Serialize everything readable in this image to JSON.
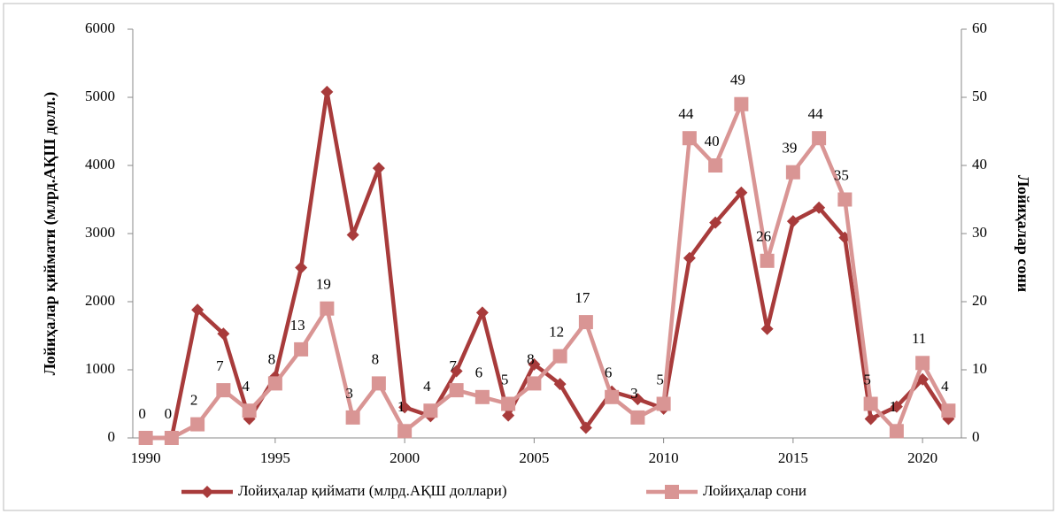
{
  "chart_data": {
    "type": "line",
    "y_label": "Лойиҳалар қиймати (млрд.АҚШ долл.)",
    "y2_label": "Лойиҳалар сони",
    "x": [
      1990,
      1991,
      1992,
      1993,
      1994,
      1995,
      1996,
      1997,
      1998,
      1999,
      2000,
      2001,
      2002,
      2003,
      2004,
      2005,
      2006,
      2007,
      2008,
      2009,
      2010,
      2011,
      2012,
      2013,
      2014,
      2015,
      2016,
      2017,
      2018,
      2019,
      2020,
      2021
    ],
    "series": [
      {
        "name": "Лойиҳалар қиймати (млрд.АҚШ доллари)",
        "color": "#a83b3b",
        "marker": "diamond",
        "values": [
          0,
          0,
          1880,
          1530,
          280,
          900,
          2500,
          5080,
          2980,
          3960,
          450,
          320,
          980,
          1840,
          330,
          1080,
          790,
          150,
          680,
          570,
          430,
          2640,
          3160,
          3600,
          1600,
          3180,
          3380,
          2940,
          280,
          460,
          860,
          280
        ]
      },
      {
        "name": "Лойиҳалар сони",
        "color": "#d99594",
        "marker": "square",
        "axis": "y2",
        "data_labels": true,
        "values": [
          0,
          0,
          2,
          7,
          4,
          8,
          13,
          19,
          3,
          8,
          1,
          4,
          7,
          6,
          5,
          8,
          12,
          17,
          6,
          3,
          5,
          44,
          40,
          49,
          26,
          39,
          44,
          35,
          5,
          1,
          11,
          4
        ]
      }
    ],
    "xlim": [
      1989.5,
      2021.5
    ],
    "xticks": [
      1990,
      1995,
      2000,
      2005,
      2010,
      2015,
      2020
    ],
    "ylim": [
      0,
      6000
    ],
    "yticks": [
      0,
      1000,
      2000,
      3000,
      4000,
      5000,
      6000
    ],
    "y2lim": [
      0,
      60
    ],
    "y2ticks": [
      0,
      10,
      20,
      30,
      40,
      50,
      60
    ],
    "grid": false,
    "legend": "bottom"
  }
}
